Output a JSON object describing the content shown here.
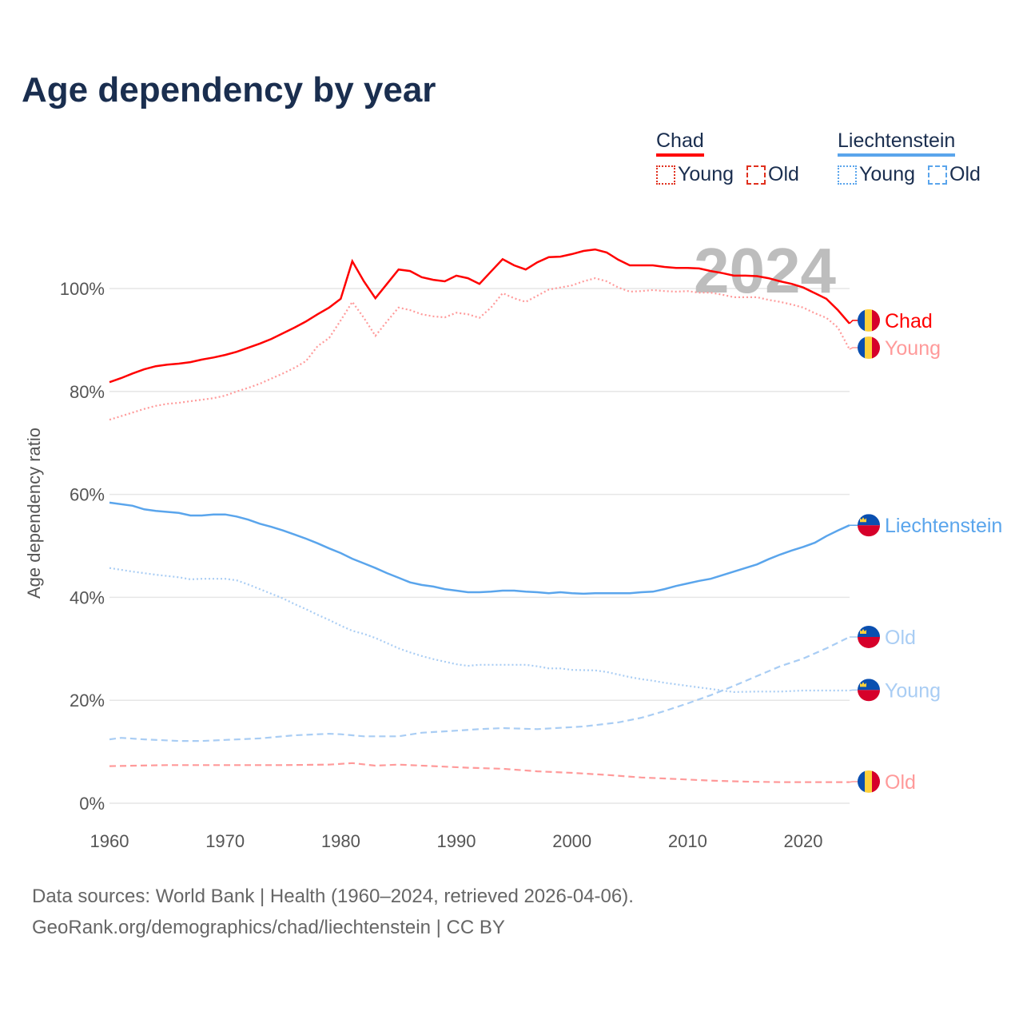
{
  "chart_data": {
    "type": "line",
    "title": "Age dependency by year",
    "xlabel": "",
    "ylabel": "Age dependency ratio",
    "xlim": [
      1960,
      2024
    ],
    "ylim": [
      0,
      110
    ],
    "x_ticks": [
      1960,
      1970,
      1980,
      1990,
      2000,
      2010,
      2020
    ],
    "y_ticks": [
      0,
      20,
      40,
      60,
      80,
      100
    ],
    "y_tick_labels": [
      "0%",
      "20%",
      "40%",
      "60%",
      "80%",
      "100%"
    ],
    "x_tick_labels": [
      "1960",
      "1970",
      "1980",
      "1990",
      "2000",
      "2010",
      "2020"
    ],
    "grid": true,
    "year_watermark": "2024",
    "legend": {
      "placement": "top-right",
      "groups": [
        {
          "country": "Chad",
          "color": "#ff0000",
          "items": [
            "Young",
            "Old"
          ]
        },
        {
          "country": "Liechtenstein",
          "color": "#5aa5ec",
          "items": [
            "Young",
            "Old"
          ]
        }
      ]
    },
    "series": [
      {
        "name": "Chad",
        "end_label": "Chad",
        "flag": "chad",
        "color": "#ff0000",
        "style": "solid",
        "points": [
          [
            1960,
            81.8
          ],
          [
            1961,
            82.6
          ],
          [
            1962,
            83.5
          ],
          [
            1963,
            84.3
          ],
          [
            1964,
            84.9
          ],
          [
            1965,
            85.2
          ],
          [
            1966,
            85.4
          ],
          [
            1967,
            85.7
          ],
          [
            1968,
            86.2
          ],
          [
            1969,
            86.6
          ],
          [
            1970,
            87.1
          ],
          [
            1971,
            87.7
          ],
          [
            1972,
            88.5
          ],
          [
            1973,
            89.3
          ],
          [
            1974,
            90.2
          ],
          [
            1975,
            91.3
          ],
          [
            1976,
            92.4
          ],
          [
            1977,
            93.6
          ],
          [
            1978,
            95.0
          ],
          [
            1979,
            96.3
          ],
          [
            1980,
            98.0
          ],
          [
            1981,
            105.3
          ],
          [
            1982,
            101.4
          ],
          [
            1983,
            98.1
          ],
          [
            1984,
            100.9
          ],
          [
            1985,
            103.7
          ],
          [
            1986,
            103.4
          ],
          [
            1987,
            102.2
          ],
          [
            1988,
            101.7
          ],
          [
            1989,
            101.4
          ],
          [
            1990,
            102.5
          ],
          [
            1991,
            102.0
          ],
          [
            1992,
            100.9
          ],
          [
            1993,
            103.3
          ],
          [
            1994,
            105.7
          ],
          [
            1995,
            104.5
          ],
          [
            1996,
            103.7
          ],
          [
            1997,
            105.1
          ],
          [
            1998,
            106.1
          ],
          [
            1999,
            106.2
          ],
          [
            2000,
            106.7
          ],
          [
            2001,
            107.3
          ],
          [
            2002,
            107.6
          ],
          [
            2003,
            107.0
          ],
          [
            2004,
            105.6
          ],
          [
            2005,
            104.5
          ],
          [
            2006,
            104.5
          ],
          [
            2007,
            104.5
          ],
          [
            2008,
            104.2
          ],
          [
            2009,
            104.0
          ],
          [
            2010,
            104.0
          ],
          [
            2011,
            103.9
          ],
          [
            2012,
            103.4
          ],
          [
            2013,
            103.0
          ],
          [
            2014,
            102.5
          ],
          [
            2015,
            102.5
          ],
          [
            2016,
            102.4
          ],
          [
            2017,
            102.0
          ],
          [
            2018,
            101.4
          ],
          [
            2019,
            100.9
          ],
          [
            2020,
            100.2
          ],
          [
            2021,
            99.1
          ],
          [
            2022,
            98.0
          ],
          [
            2023,
            95.8
          ],
          [
            2024,
            93.2
          ]
        ]
      },
      {
        "name": "Chad Young",
        "end_label": "Young",
        "flag": "chad",
        "color": "#ff9a9a",
        "style": "dotted",
        "points": [
          [
            1960,
            74.5
          ],
          [
            1961,
            75.2
          ],
          [
            1962,
            75.9
          ],
          [
            1963,
            76.6
          ],
          [
            1964,
            77.2
          ],
          [
            1965,
            77.6
          ],
          [
            1966,
            77.8
          ],
          [
            1967,
            78.1
          ],
          [
            1968,
            78.4
          ],
          [
            1969,
            78.7
          ],
          [
            1970,
            79.2
          ],
          [
            1971,
            80.0
          ],
          [
            1972,
            80.7
          ],
          [
            1973,
            81.5
          ],
          [
            1974,
            82.5
          ],
          [
            1975,
            83.5
          ],
          [
            1976,
            84.6
          ],
          [
            1977,
            85.9
          ],
          [
            1978,
            88.8
          ],
          [
            1979,
            90.4
          ],
          [
            1980,
            93.8
          ],
          [
            1981,
            97.4
          ],
          [
            1982,
            94.3
          ],
          [
            1983,
            90.8
          ],
          [
            1984,
            93.6
          ],
          [
            1985,
            96.3
          ],
          [
            1986,
            95.8
          ],
          [
            1987,
            95.0
          ],
          [
            1988,
            94.6
          ],
          [
            1989,
            94.4
          ],
          [
            1990,
            95.3
          ],
          [
            1991,
            95.0
          ],
          [
            1992,
            94.3
          ],
          [
            1993,
            96.3
          ],
          [
            1994,
            99.1
          ],
          [
            1995,
            98.1
          ],
          [
            1996,
            97.4
          ],
          [
            1997,
            98.6
          ],
          [
            1998,
            99.8
          ],
          [
            1999,
            100.2
          ],
          [
            2000,
            100.6
          ],
          [
            2001,
            101.4
          ],
          [
            2002,
            102.0
          ],
          [
            2003,
            101.4
          ],
          [
            2004,
            100.2
          ],
          [
            2005,
            99.4
          ],
          [
            2006,
            99.5
          ],
          [
            2007,
            99.7
          ],
          [
            2008,
            99.5
          ],
          [
            2009,
            99.4
          ],
          [
            2010,
            99.5
          ],
          [
            2011,
            99.2
          ],
          [
            2012,
            99.2
          ],
          [
            2013,
            98.8
          ],
          [
            2014,
            98.3
          ],
          [
            2015,
            98.3
          ],
          [
            2016,
            98.3
          ],
          [
            2017,
            97.8
          ],
          [
            2018,
            97.4
          ],
          [
            2019,
            96.9
          ],
          [
            2020,
            96.3
          ],
          [
            2021,
            95.2
          ],
          [
            2022,
            94.3
          ],
          [
            2023,
            92.4
          ],
          [
            2024,
            88.2
          ]
        ]
      },
      {
        "name": "Chad Old",
        "end_label": "Old",
        "flag": "chad",
        "color": "#ff9a9a",
        "style": "dashed",
        "points": [
          [
            1960,
            7.2
          ],
          [
            1965,
            7.4
          ],
          [
            1970,
            7.4
          ],
          [
            1975,
            7.4
          ],
          [
            1979,
            7.5
          ],
          [
            1981,
            7.8
          ],
          [
            1983,
            7.3
          ],
          [
            1985,
            7.5
          ],
          [
            1988,
            7.2
          ],
          [
            1991,
            6.9
          ],
          [
            1994,
            6.7
          ],
          [
            1997,
            6.2
          ],
          [
            2000,
            5.9
          ],
          [
            2003,
            5.5
          ],
          [
            2006,
            5.0
          ],
          [
            2009,
            4.7
          ],
          [
            2012,
            4.4
          ],
          [
            2015,
            4.2
          ],
          [
            2018,
            4.1
          ],
          [
            2021,
            4.1
          ],
          [
            2024,
            4.1
          ]
        ]
      },
      {
        "name": "Liechtenstein",
        "end_label": "Liechtenstein",
        "flag": "liechtenstein",
        "color": "#5aa5ec",
        "style": "solid",
        "points": [
          [
            1960,
            58.4
          ],
          [
            1962,
            57.8
          ],
          [
            1963,
            57.1
          ],
          [
            1964,
            56.8
          ],
          [
            1966,
            56.4
          ],
          [
            1967,
            55.9
          ],
          [
            1968,
            55.9
          ],
          [
            1969,
            56.1
          ],
          [
            1970,
            56.1
          ],
          [
            1971,
            55.7
          ],
          [
            1972,
            55.1
          ],
          [
            1973,
            54.3
          ],
          [
            1974,
            53.7
          ],
          [
            1975,
            53.0
          ],
          [
            1976,
            52.2
          ],
          [
            1977,
            51.4
          ],
          [
            1978,
            50.5
          ],
          [
            1979,
            49.5
          ],
          [
            1980,
            48.6
          ],
          [
            1981,
            47.5
          ],
          [
            1982,
            46.6
          ],
          [
            1983,
            45.7
          ],
          [
            1984,
            44.7
          ],
          [
            1985,
            43.8
          ],
          [
            1986,
            42.9
          ],
          [
            1987,
            42.4
          ],
          [
            1988,
            42.1
          ],
          [
            1989,
            41.6
          ],
          [
            1990,
            41.3
          ],
          [
            1991,
            41.0
          ],
          [
            1992,
            41.0
          ],
          [
            1993,
            41.1
          ],
          [
            1994,
            41.3
          ],
          [
            1995,
            41.3
          ],
          [
            1996,
            41.1
          ],
          [
            1997,
            41.0
          ],
          [
            1998,
            40.8
          ],
          [
            1999,
            41.0
          ],
          [
            2000,
            40.8
          ],
          [
            2001,
            40.7
          ],
          [
            2002,
            40.8
          ],
          [
            2005,
            40.8
          ],
          [
            2006,
            41.0
          ],
          [
            2007,
            41.1
          ],
          [
            2008,
            41.6
          ],
          [
            2009,
            42.2
          ],
          [
            2010,
            42.7
          ],
          [
            2011,
            43.2
          ],
          [
            2012,
            43.6
          ],
          [
            2013,
            44.3
          ],
          [
            2014,
            45.0
          ],
          [
            2015,
            45.7
          ],
          [
            2016,
            46.4
          ],
          [
            2017,
            47.4
          ],
          [
            2018,
            48.3
          ],
          [
            2019,
            49.1
          ],
          [
            2020,
            49.8
          ],
          [
            2021,
            50.6
          ],
          [
            2022,
            51.9
          ],
          [
            2023,
            53.0
          ],
          [
            2024,
            54.0
          ]
        ]
      },
      {
        "name": "Liechtenstein Old",
        "end_label": "Old",
        "flag": "liechtenstein",
        "color": "#a9cdf4",
        "style": "dashed",
        "points": [
          [
            1960,
            12.4
          ],
          [
            1961,
            12.7
          ],
          [
            1963,
            12.4
          ],
          [
            1966,
            12.1
          ],
          [
            1968,
            12.1
          ],
          [
            1970,
            12.3
          ],
          [
            1973,
            12.6
          ],
          [
            1976,
            13.2
          ],
          [
            1979,
            13.5
          ],
          [
            1980,
            13.4
          ],
          [
            1982,
            13.0
          ],
          [
            1985,
            13.0
          ],
          [
            1987,
            13.7
          ],
          [
            1990,
            14.1
          ],
          [
            1992,
            14.4
          ],
          [
            1994,
            14.6
          ],
          [
            1997,
            14.4
          ],
          [
            2001,
            14.9
          ],
          [
            2004,
            15.7
          ],
          [
            2006,
            16.6
          ],
          [
            2008,
            17.9
          ],
          [
            2010,
            19.4
          ],
          [
            2012,
            21.0
          ],
          [
            2014,
            22.8
          ],
          [
            2016,
            24.7
          ],
          [
            2018,
            26.6
          ],
          [
            2020,
            28.1
          ],
          [
            2022,
            30.1
          ],
          [
            2024,
            32.3
          ]
        ]
      },
      {
        "name": "Liechtenstein Young",
        "end_label": "Young",
        "flag": "liechtenstein",
        "color": "#a9cdf4",
        "style": "dotted",
        "points": [
          [
            1960,
            45.7
          ],
          [
            1962,
            45.0
          ],
          [
            1964,
            44.4
          ],
          [
            1966,
            43.9
          ],
          [
            1967,
            43.5
          ],
          [
            1968,
            43.6
          ],
          [
            1970,
            43.6
          ],
          [
            1971,
            43.3
          ],
          [
            1972,
            42.5
          ],
          [
            1973,
            41.6
          ],
          [
            1974,
            40.7
          ],
          [
            1975,
            39.8
          ],
          [
            1976,
            38.7
          ],
          [
            1977,
            37.7
          ],
          [
            1978,
            36.6
          ],
          [
            1979,
            35.6
          ],
          [
            1980,
            34.5
          ],
          [
            1981,
            33.5
          ],
          [
            1982,
            32.9
          ],
          [
            1983,
            32.1
          ],
          [
            1984,
            31.1
          ],
          [
            1985,
            30.1
          ],
          [
            1986,
            29.3
          ],
          [
            1987,
            28.6
          ],
          [
            1988,
            28.0
          ],
          [
            1989,
            27.5
          ],
          [
            1990,
            27.0
          ],
          [
            1991,
            26.7
          ],
          [
            1992,
            26.9
          ],
          [
            1996,
            26.9
          ],
          [
            1997,
            26.6
          ],
          [
            1998,
            26.2
          ],
          [
            1999,
            26.2
          ],
          [
            2000,
            25.9
          ],
          [
            2002,
            25.8
          ],
          [
            2003,
            25.5
          ],
          [
            2004,
            25.0
          ],
          [
            2005,
            24.5
          ],
          [
            2006,
            24.1
          ],
          [
            2007,
            23.8
          ],
          [
            2008,
            23.4
          ],
          [
            2009,
            23.1
          ],
          [
            2010,
            22.8
          ],
          [
            2011,
            22.5
          ],
          [
            2012,
            22.2
          ],
          [
            2013,
            21.9
          ],
          [
            2014,
            21.6
          ],
          [
            2016,
            21.7
          ],
          [
            2018,
            21.7
          ],
          [
            2020,
            21.9
          ],
          [
            2024,
            21.9
          ]
        ]
      }
    ]
  },
  "footer": {
    "sources": "Data sources: World Bank | Health (1960–2024, retrieved 2026-04-06).",
    "credit": "GeoRank.org/demographics/chad/liechtenstein | CC BY"
  }
}
